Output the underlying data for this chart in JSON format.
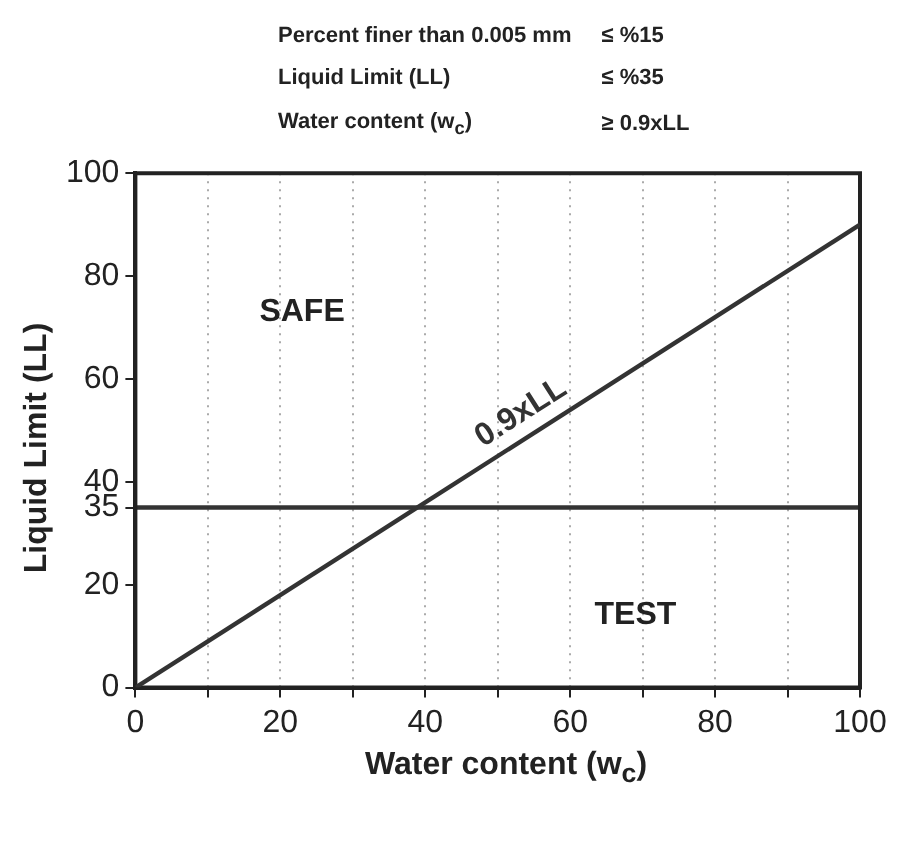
{
  "chart_data": {
    "type": "line",
    "xlabel": "Water content (w$_{c}$)",
    "ylabel": "Liquid Limit (LL)",
    "annotations": [
      "Percent finer than 0.005 mm",
      "≤ %15",
      "Liquid Limit (LL)",
      "≤ %35",
      "Water content (w$_{c}$)",
      "≥ 0.9xLL",
      "SAFE",
      "TEST"
    ],
    "series": [
      {
        "name": "0.9xLL",
        "color": "#333333",
        "x": [
          0,
          100
        ],
        "values": [
          0,
          90
        ]
      }
    ],
    "ref_lines": [
      {
        "axis": "y",
        "value": 35,
        "color": "#333333"
      }
    ],
    "xlim": [
      0,
      100
    ],
    "ylim": [
      0,
      100
    ],
    "xticks": [
      0,
      {
        "value": 10,
        "label": null
      },
      20,
      {
        "value": 30,
        "label": null
      },
      40,
      {
        "value": 50,
        "label": null
      },
      60,
      {
        "value": 70,
        "label": null
      },
      80,
      {
        "value": 90,
        "label": null
      },
      100
    ],
    "yticks": [
      0,
      20,
      35,
      40,
      60,
      80,
      100
    ],
    "grid": "x",
    "legend": false,
    "marker": "none",
    "line_style": "solid"
  }
}
